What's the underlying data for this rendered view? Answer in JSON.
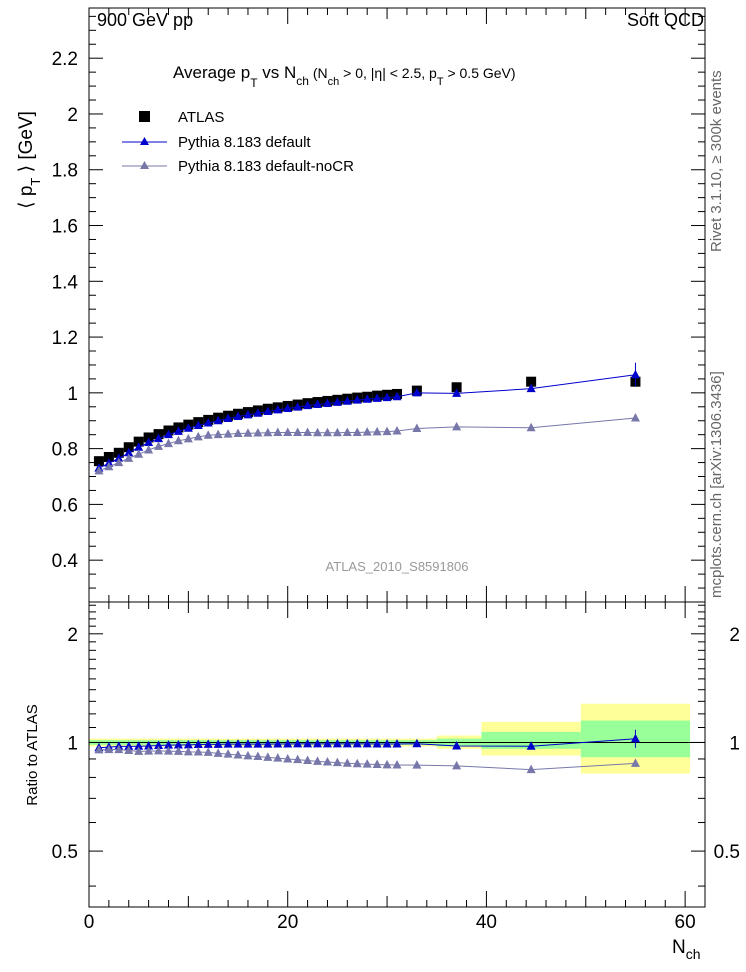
{
  "header": {
    "left": "900 GeV pp",
    "right": "Soft QCD"
  },
  "side_labels": {
    "top": "Rivet 3.1.10, ≥ 300k events",
    "bottom": "mcplots.cern.ch [arXiv:1306.3436]"
  },
  "watermark": "ATLAS_2010_S8591806",
  "chart_data": [
    {
      "type": "scatter",
      "panel": "main",
      "title": "Average p_T vs N_ch (N_ch > 0, |η| < 2.5, p_T > 0.5 GeV)",
      "title_parts": {
        "main": "Average p",
        "sub1": "T",
        "mid": " vs N",
        "sub2": "ch",
        "tail": " (N",
        "sub3": "ch",
        "tail2": " > 0, |η| < 2.5, p",
        "sub4": "T",
        "tail3": " > 0.5 GeV)"
      },
      "ylabel": "⟨ p_T ⟩ [GeV]",
      "ylabel_parts": {
        "pre": "⟨ p",
        "sub": "T",
        "post": " ⟩ [GeV]"
      },
      "xlim": [
        0,
        62
      ],
      "ylim": [
        0.25,
        2.38
      ],
      "y_ticks": [
        "0.4",
        "0.6",
        "0.8",
        "1",
        "1.2",
        "1.4",
        "1.6",
        "1.8",
        "2",
        "2.2"
      ],
      "legend": {
        "position": "top-left",
        "entries": [
          "ATLAS",
          "Pythia 8.183 default",
          "Pythia 8.183 default-noCR"
        ]
      },
      "series": [
        {
          "name": "ATLAS",
          "color": "#000000",
          "marker": "square",
          "x": [
            1,
            2,
            3,
            4,
            5,
            6,
            7,
            8,
            9,
            10,
            11,
            12,
            13,
            14,
            15,
            16,
            17,
            18,
            19,
            20,
            21,
            22,
            23,
            24,
            25,
            26,
            27,
            28,
            29,
            30,
            31,
            33,
            37,
            44.5,
            55
          ],
          "y": [
            0.755,
            0.77,
            0.785,
            0.805,
            0.825,
            0.84,
            0.852,
            0.865,
            0.876,
            0.886,
            0.895,
            0.903,
            0.911,
            0.918,
            0.925,
            0.931,
            0.937,
            0.943,
            0.948,
            0.953,
            0.958,
            0.963,
            0.967,
            0.971,
            0.975,
            0.979,
            0.983,
            0.986,
            0.99,
            0.993,
            0.996,
            1.008,
            1.02,
            1.04,
            1.04
          ]
        },
        {
          "name": "Pythia 8.183 default",
          "color": "#0000cc",
          "marker": "triangle",
          "x": [
            1,
            2,
            3,
            4,
            5,
            6,
            7,
            8,
            9,
            10,
            11,
            12,
            13,
            14,
            15,
            16,
            17,
            18,
            19,
            20,
            21,
            22,
            23,
            24,
            25,
            26,
            27,
            28,
            29,
            30,
            31,
            33,
            37,
            44.5,
            55
          ],
          "y": [
            0.73,
            0.748,
            0.765,
            0.785,
            0.805,
            0.822,
            0.836,
            0.85,
            0.862,
            0.873,
            0.883,
            0.892,
            0.9,
            0.908,
            0.915,
            0.921,
            0.927,
            0.933,
            0.939,
            0.944,
            0.949,
            0.954,
            0.958,
            0.962,
            0.966,
            0.97,
            0.974,
            0.977,
            0.98,
            0.983,
            0.986,
            1.0,
            0.998,
            1.015,
            1.065
          ]
        },
        {
          "name": "Pythia 8.183 default-noCR",
          "color": "#7777aa",
          "marker": "triangle",
          "x": [
            1,
            2,
            3,
            4,
            5,
            6,
            7,
            8,
            9,
            10,
            11,
            12,
            13,
            14,
            15,
            16,
            17,
            18,
            19,
            20,
            21,
            22,
            23,
            24,
            25,
            26,
            27,
            28,
            29,
            30,
            31,
            33,
            37,
            44.5,
            55
          ],
          "y": [
            0.72,
            0.735,
            0.75,
            0.765,
            0.78,
            0.795,
            0.808,
            0.818,
            0.828,
            0.835,
            0.842,
            0.848,
            0.85,
            0.852,
            0.854,
            0.855,
            0.856,
            0.857,
            0.858,
            0.858,
            0.858,
            0.858,
            0.857,
            0.857,
            0.857,
            0.858,
            0.858,
            0.859,
            0.86,
            0.861,
            0.863,
            0.872,
            0.878,
            0.875,
            0.91
          ]
        }
      ]
    },
    {
      "type": "scatter",
      "panel": "ratio",
      "ylabel": "Ratio to ATLAS",
      "xlabel": "N_ch",
      "xlabel_parts": {
        "pre": "N",
        "sub": "ch"
      },
      "xlim": [
        0,
        62
      ],
      "ylim": [
        0.35,
        2.45
      ],
      "y_ticks": [
        "0.5",
        "1",
        "2"
      ],
      "x_ticks": [
        "0",
        "20",
        "40",
        "60"
      ],
      "bands": [
        {
          "x": [
            0,
            35
          ],
          "yellow": [
            0.975,
            1.025
          ],
          "green": [
            0.985,
            1.015
          ]
        },
        {
          "x": [
            35,
            39.5
          ],
          "yellow": [
            0.96,
            1.045
          ],
          "green": [
            0.975,
            1.025
          ]
        },
        {
          "x": [
            39.5,
            49.5
          ],
          "yellow": [
            0.92,
            1.14
          ],
          "green": [
            0.96,
            1.07
          ]
        },
        {
          "x": [
            49.5,
            60.5
          ],
          "yellow": [
            0.82,
            1.28
          ],
          "green": [
            0.91,
            1.15
          ]
        }
      ],
      "series": [
        {
          "name": "Pythia 8.183 default",
          "color": "#0000cc",
          "x": [
            1,
            2,
            3,
            4,
            5,
            6,
            7,
            8,
            9,
            10,
            11,
            12,
            13,
            14,
            15,
            16,
            17,
            18,
            19,
            20,
            21,
            22,
            23,
            24,
            25,
            26,
            27,
            28,
            29,
            30,
            31,
            33,
            37,
            44.5,
            55
          ],
          "y": [
            0.967,
            0.971,
            0.975,
            0.975,
            0.976,
            0.978,
            0.981,
            0.983,
            0.984,
            0.985,
            0.987,
            0.988,
            0.988,
            0.989,
            0.989,
            0.989,
            0.989,
            0.989,
            0.99,
            0.99,
            0.991,
            0.991,
            0.991,
            0.991,
            0.991,
            0.991,
            0.991,
            0.991,
            0.99,
            0.99,
            0.99,
            0.992,
            0.978,
            0.976,
            1.024
          ]
        },
        {
          "name": "Pythia 8.183 default-noCR",
          "color": "#7777aa",
          "x": [
            1,
            2,
            3,
            4,
            5,
            6,
            7,
            8,
            9,
            10,
            11,
            12,
            13,
            14,
            15,
            16,
            17,
            18,
            19,
            20,
            21,
            22,
            23,
            24,
            25,
            26,
            27,
            28,
            29,
            30,
            31,
            33,
            37,
            44.5,
            55
          ],
          "y": [
            0.954,
            0.955,
            0.955,
            0.95,
            0.945,
            0.946,
            0.948,
            0.946,
            0.945,
            0.942,
            0.941,
            0.939,
            0.933,
            0.928,
            0.923,
            0.918,
            0.914,
            0.909,
            0.905,
            0.9,
            0.896,
            0.891,
            0.886,
            0.883,
            0.879,
            0.876,
            0.873,
            0.871,
            0.869,
            0.867,
            0.866,
            0.865,
            0.861,
            0.841,
            0.875
          ]
        }
      ]
    }
  ]
}
